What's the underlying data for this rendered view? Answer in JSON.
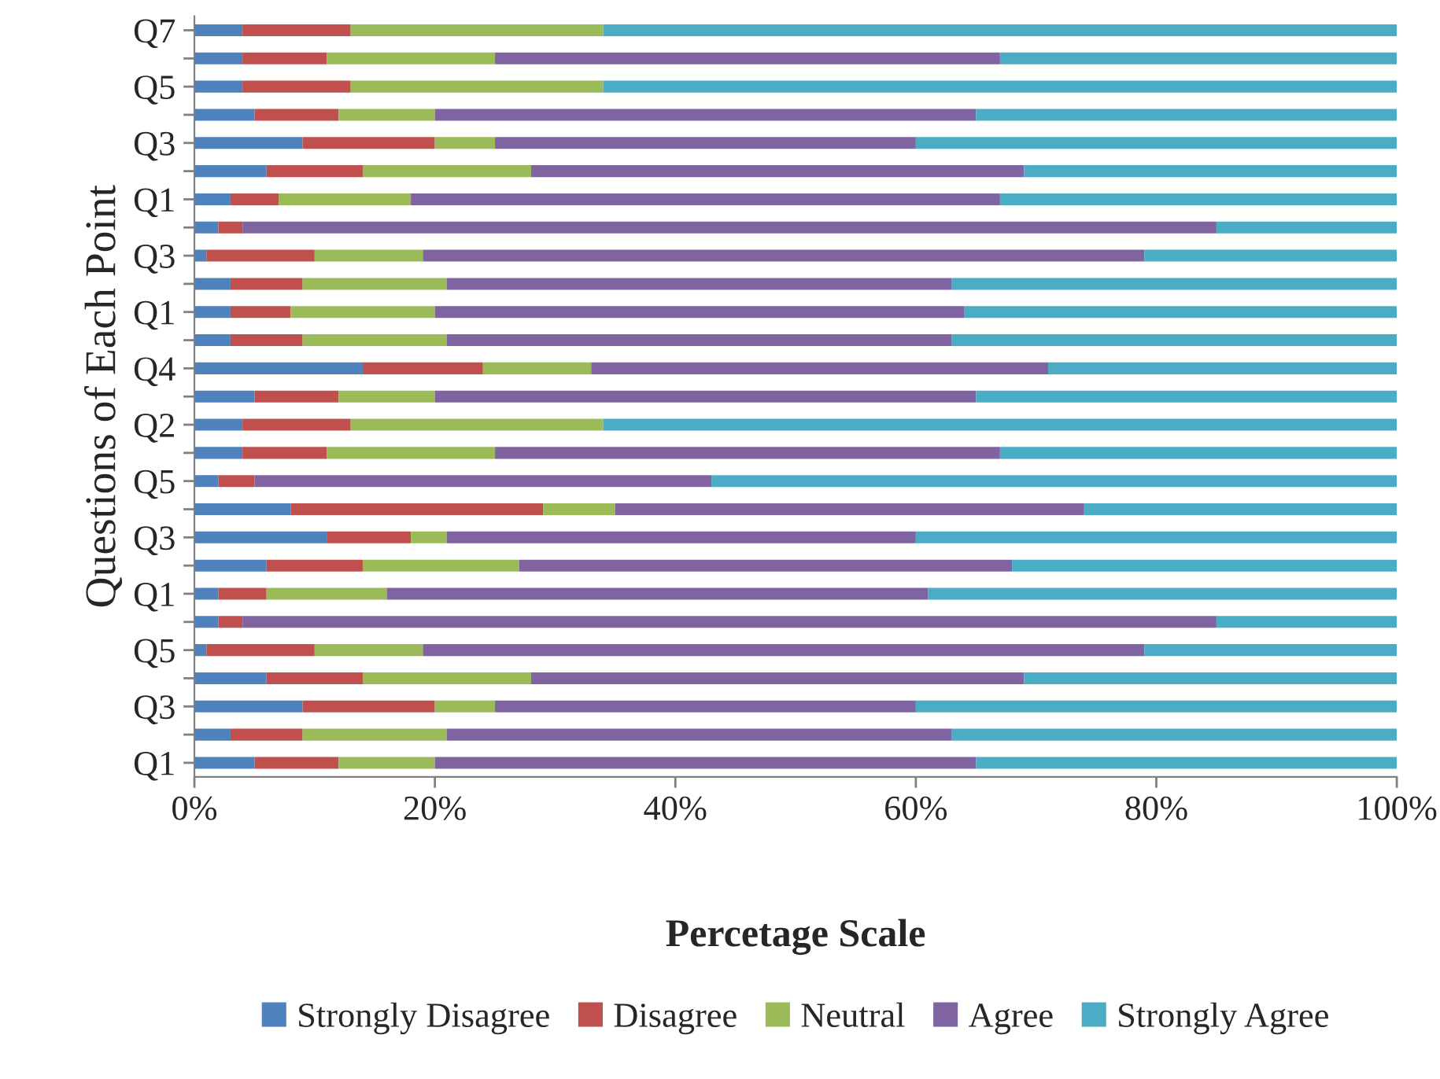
{
  "chart_data": {
    "type": "bar",
    "orientation": "horizontal",
    "stacked": true,
    "xlabel": "Percetage Scale",
    "ylabel": "Questions of Each Point",
    "legend": "bottom",
    "grid": false,
    "categories": [
      "Q7",
      null,
      "Q5",
      null,
      "Q3",
      null,
      "Q1",
      null,
      "Q3",
      null,
      "Q1",
      null,
      "Q4",
      null,
      "Q2",
      null,
      "Q5",
      null,
      "Q3",
      null,
      "Q1",
      null,
      "Q5",
      null,
      "Q3",
      null,
      "Q1"
    ],
    "xlim": [
      0,
      100
    ],
    "xticks": [
      {
        "value": 0,
        "label": "0%"
      },
      {
        "value": 20,
        "label": "20%"
      },
      {
        "value": 40,
        "label": "40%"
      },
      {
        "value": 60,
        "label": "60%"
      },
      {
        "value": 80,
        "label": "80%"
      },
      {
        "value": 100,
        "label": "100%"
      }
    ],
    "series": [
      {
        "name": "Strongly Disagree",
        "color": "#4f81bd",
        "values": [
          4,
          4,
          4,
          5,
          9,
          6,
          3,
          2,
          1,
          3,
          3,
          3,
          14,
          5,
          4,
          4,
          2,
          8,
          11,
          6,
          2,
          2,
          1,
          6,
          9,
          3,
          5
        ]
      },
      {
        "name": "Disagree",
        "color": "#c0504d",
        "values": [
          9,
          7,
          9,
          7,
          11,
          8,
          4,
          2,
          9,
          6,
          5,
          6,
          10,
          7,
          9,
          7,
          3,
          21,
          7,
          8,
          4,
          2,
          9,
          8,
          11,
          6,
          7
        ]
      },
      {
        "name": "Neutral",
        "color": "#9bbb59",
        "values": [
          21,
          14,
          21,
          8,
          5,
          14,
          11,
          0,
          9,
          12,
          12,
          12,
          9,
          8,
          21,
          14,
          0,
          6,
          3,
          13,
          10,
          0,
          9,
          14,
          5,
          12,
          8
        ]
      },
      {
        "name": "Agree",
        "color": "#8064a2",
        "values": [
          0,
          42,
          0,
          45,
          35,
          41,
          49,
          81,
          60,
          42,
          44,
          42,
          38,
          45,
          0,
          42,
          38,
          39,
          39,
          41,
          45,
          81,
          60,
          41,
          35,
          42,
          45
        ]
      },
      {
        "name": "Strongly Agree",
        "color": "#4bacc6",
        "values": [
          66,
          33,
          66,
          35,
          40,
          31,
          33,
          15,
          21,
          37,
          36,
          37,
          29,
          35,
          66,
          33,
          57,
          26,
          40,
          32,
          39,
          15,
          21,
          31,
          40,
          37,
          35
        ]
      }
    ]
  }
}
